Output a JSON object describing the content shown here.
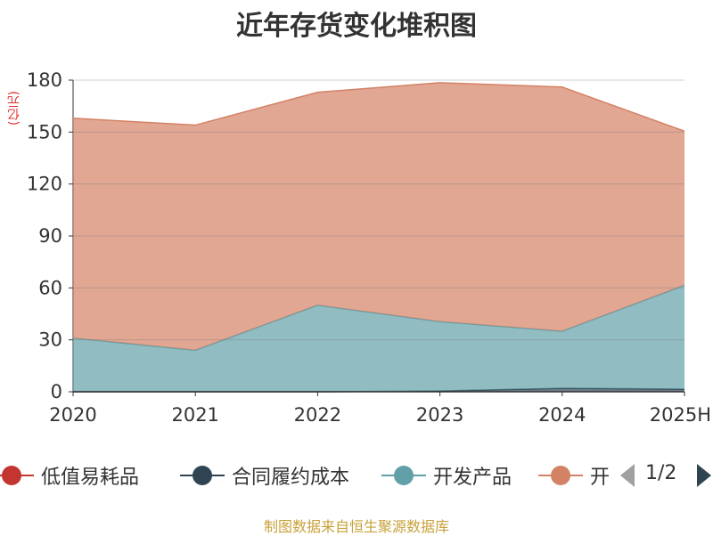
{
  "chart_data": {
    "type": "area",
    "stacked": true,
    "title": "近年存货变化堆积图",
    "ylabel": "(亿元)",
    "categories": [
      "2020",
      "2021",
      "2022",
      "2023",
      "2024",
      "2025H"
    ],
    "ylim": [
      0,
      180
    ],
    "yticks": [
      0,
      30,
      60,
      90,
      120,
      150,
      180
    ],
    "grid": true,
    "legend_position": "bottom",
    "series": [
      {
        "name": "低值易耗品",
        "color": "#c23531",
        "values": [
          0,
          0,
          0,
          0,
          0,
          0
        ]
      },
      {
        "name": "合同履约成本",
        "color": "#2f4554",
        "values": [
          0,
          0,
          0,
          0.5,
          2,
          1.5
        ]
      },
      {
        "name": "开发产品",
        "color": "#61a0a8",
        "values": [
          31,
          24,
          50,
          40,
          33,
          60
        ]
      },
      {
        "name": "开发成本",
        "color": "#d48265",
        "values": [
          127,
          130,
          123,
          138,
          141,
          89
        ]
      }
    ]
  },
  "legend": {
    "visible_last_label": "开",
    "page": "1/2"
  },
  "footer": "制图数据来自恒生聚源数据库"
}
